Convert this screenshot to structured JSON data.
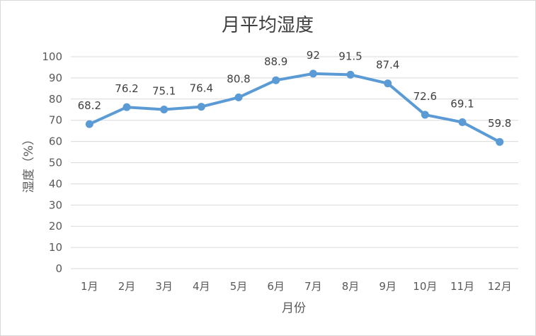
{
  "chart_data": {
    "type": "line",
    "title": "月平均湿度",
    "xlabel": "月份",
    "ylabel": "湿度（%）",
    "categories": [
      "1月",
      "2月",
      "3月",
      "4月",
      "5月",
      "6月",
      "7月",
      "8月",
      "9月",
      "10月",
      "11月",
      "12月"
    ],
    "series": [
      {
        "values": [
          68.2,
          76.2,
          75.1,
          76.4,
          80.8,
          88.9,
          92,
          91.5,
          87.4,
          72.6,
          69.1,
          59.8
        ]
      }
    ],
    "ylim": [
      0,
      100
    ],
    "yticks": [
      "0",
      "10",
      "20",
      "30",
      "40",
      "50",
      "60",
      "70",
      "80",
      "90",
      "100"
    ],
    "data_labels": [
      "68.2",
      "76.2",
      "75.1",
      "76.4",
      "80.8",
      "88.9",
      "92",
      "91.5",
      "87.4",
      "72.6",
      "69.1",
      "59.8"
    ],
    "grid": true,
    "legend": "none",
    "colors": {
      "line": "#5b9bd5",
      "grid": "#d9d9d9",
      "text": "#595959"
    }
  }
}
